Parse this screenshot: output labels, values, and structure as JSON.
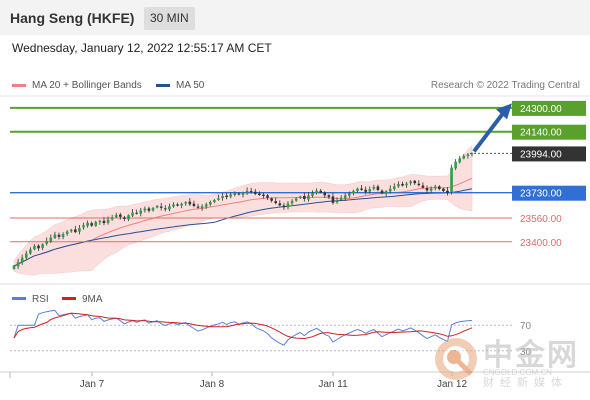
{
  "header": {
    "title": "Hang Seng (HKFE)",
    "timeframe": "30 MIN"
  },
  "date_line": "Wednesday, January 12, 2022 12:55:17 AM CET",
  "legend": [
    {
      "label": "MA 20 + Bollinger Bands",
      "color": "#f08080"
    },
    {
      "label": "MA 50",
      "color": "#2a4f8f"
    }
  ],
  "credit": "Research © 2022 Trading Central",
  "watermark": {
    "brand": "中金网",
    "url": "CNGOLD.COM.CN",
    "tagline": "财经新媒体"
  },
  "colors": {
    "resistance": "#5aa02c",
    "support_main": "#2f6fd6",
    "support": "#e06b6b",
    "current": "#333333",
    "bull": "#2e9e44",
    "bear": "#333333",
    "ma20": "#f08080",
    "ma50": "#2a4f8f",
    "band_fill": "#fbdada",
    "rsi": "#5b7fd9",
    "rsi_ma": "#cc2222",
    "arrow": "#2a5ea8"
  },
  "chart_data": [
    {
      "type": "candlestick",
      "title": "Hang Seng (HKFE)",
      "timeframe": "30 MIN",
      "x_ticks": [
        "Jan 7",
        "Jan 8",
        "Jan 11",
        "Jan 12"
      ],
      "ylim": [
        23170,
        24380
      ],
      "levels": [
        {
          "value": 24300,
          "label": "24300.00",
          "kind": "resistance"
        },
        {
          "value": 24140,
          "label": "24140.00",
          "kind": "resistance"
        },
        {
          "value": 23994,
          "label": "23994.00",
          "kind": "current"
        },
        {
          "value": 23730,
          "label": "23730.00",
          "kind": "support_main"
        },
        {
          "value": 23560,
          "label": "23560.00",
          "kind": "support"
        },
        {
          "value": 23400,
          "label": "23400.00",
          "kind": "support"
        }
      ],
      "series": [
        {
          "name": "MA 20 + Bollinger Bands"
        },
        {
          "name": "MA 50"
        }
      ],
      "closes": [
        23238,
        23262,
        23293,
        23321,
        23348,
        23372,
        23356,
        23383,
        23405,
        23428,
        23449,
        23433,
        23452,
        23469,
        23481,
        23465,
        23492,
        23511,
        23528,
        23509,
        23533,
        23541,
        23526,
        23548,
        23563,
        23579,
        23568,
        23554,
        23578,
        23596,
        23589,
        23610,
        23622,
        23608,
        23626,
        23641,
        23628,
        23619,
        23638,
        23651,
        23643,
        23655,
        23667,
        23652,
        23641,
        23629,
        23638,
        23652,
        23668,
        23681,
        23692,
        23708,
        23700,
        23718,
        23727,
        23718,
        23731,
        23742,
        23736,
        23722,
        23714,
        23708,
        23696,
        23676,
        23660,
        23645,
        23632,
        23658,
        23675,
        23691,
        23704,
        23688,
        23712,
        23728,
        23744,
        23731,
        23712,
        23702,
        23662,
        23678,
        23696,
        23712,
        23726,
        23741,
        23758,
        23749,
        23736,
        23754,
        23768,
        23748,
        23726,
        23741,
        23756,
        23772,
        23788,
        23778,
        23791,
        23806,
        23794,
        23781,
        23763,
        23745,
        23758,
        23771,
        23755,
        23741,
        23729,
        23898,
        23938,
        23962,
        23978,
        23988,
        23994
      ],
      "ma20_approx": "computed from closes",
      "ma50_approx": "computed from closes"
    },
    {
      "type": "line",
      "series": [
        {
          "name": "RSI"
        },
        {
          "name": "9MA"
        }
      ],
      "ylim": [
        0,
        100
      ],
      "levels": [
        {
          "value": 70,
          "label": "70"
        },
        {
          "value": 30,
          "label": "30"
        }
      ]
    }
  ]
}
